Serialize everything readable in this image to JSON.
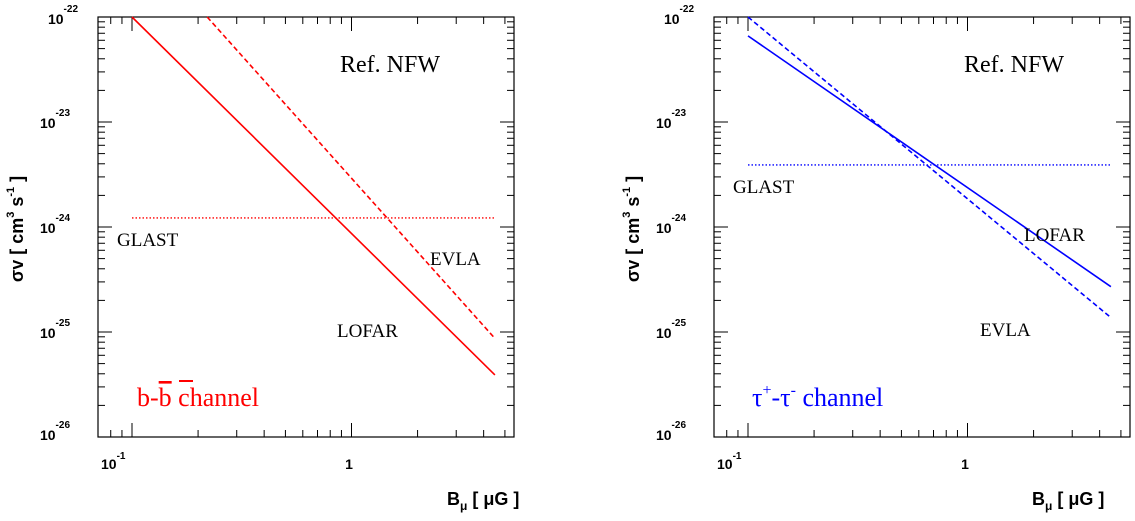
{
  "figure": {
    "panels": [
      {
        "id": "left",
        "ylabel": {
          "base": "σv [ cm",
          "sup1": "3",
          "mid": " s",
          "sup2": "-1",
          "end": " ]"
        },
        "xlabel": {
          "base": "B",
          "sub": "μ",
          "end": " [ μG ]"
        },
        "ref_label": "Ref. NFW",
        "channel_label": {
          "text1": "b-",
          "overbar": "b",
          "text2": " channel"
        },
        "channel_color": "#ff0000",
        "y_ticks": [
          {
            "base": "10",
            "exp": "-22"
          },
          {
            "base": "10",
            "exp": "-23"
          },
          {
            "base": "10",
            "exp": "-24"
          },
          {
            "base": "10",
            "exp": "-25"
          },
          {
            "base": "10",
            "exp": "-26"
          }
        ],
        "x_ticks": [
          {
            "base": "10",
            "exp": "-1"
          },
          {
            "base": "1",
            "exp": ""
          }
        ]
      },
      {
        "id": "right",
        "ylabel": {
          "base": "σv [ cm",
          "sup1": "3",
          "mid": " s",
          "sup2": "-1",
          "end": " ]"
        },
        "xlabel": {
          "base": "B",
          "sub": "μ",
          "end": " [ μG ]"
        },
        "ref_label": "Ref. NFW",
        "channel_label": {
          "tau1": "τ",
          "sup1": "+",
          "dash": "-",
          "tau2": "τ",
          "sup2": "-",
          "text2": " channel"
        },
        "channel_color": "#0000ff",
        "y_ticks": [
          {
            "base": "10",
            "exp": "-22"
          },
          {
            "base": "10",
            "exp": "-23"
          },
          {
            "base": "10",
            "exp": "-24"
          },
          {
            "base": "10",
            "exp": "-25"
          },
          {
            "base": "10",
            "exp": "-26"
          }
        ],
        "x_ticks": [
          {
            "base": "10",
            "exp": "-1"
          },
          {
            "base": "1",
            "exp": ""
          }
        ]
      }
    ]
  },
  "chart_data": [
    {
      "type": "line",
      "xscale": "log",
      "yscale": "log",
      "xlim": [
        0.07,
        5.5
      ],
      "ylim": [
        1e-26,
        1e-22
      ],
      "xlabel": "B_μ [ μG ]",
      "ylabel": "σv [ cm^3 s^-1 ]",
      "title": "",
      "annotations": [
        "Ref. NFW",
        "b-b channel"
      ],
      "color": "#ff0000",
      "series": [
        {
          "name": "LOFAR",
          "style": "solid",
          "x": [
            0.1,
            4.5
          ],
          "y": [
            1e-22,
            3.9e-26
          ]
        },
        {
          "name": "EVLA",
          "style": "dashed",
          "x": [
            0.22,
            4.5
          ],
          "y": [
            1e-22,
            8.7e-26
          ]
        },
        {
          "name": "GLAST",
          "style": "dotted",
          "x": [
            0.1,
            4.5
          ],
          "y": [
            1.22e-24,
            1.22e-24
          ]
        }
      ]
    },
    {
      "type": "line",
      "xscale": "log",
      "yscale": "log",
      "xlim": [
        0.07,
        5.5
      ],
      "ylim": [
        1e-26,
        1e-22
      ],
      "xlabel": "B_μ [ μG ]",
      "ylabel": "σv [ cm^3 s^-1 ]",
      "title": "",
      "annotations": [
        "Ref. NFW",
        "τ+-τ- channel"
      ],
      "color": "#0000ff",
      "series": [
        {
          "name": "LOFAR",
          "style": "solid",
          "x": [
            0.1,
            4.5
          ],
          "y": [
            6.6e-23,
            2.7e-25
          ]
        },
        {
          "name": "EVLA",
          "style": "dashed",
          "x": [
            0.1,
            4.5
          ],
          "y": [
            1e-22,
            1.37e-25
          ]
        },
        {
          "name": "GLAST",
          "style": "dotted",
          "x": [
            0.1,
            4.5
          ],
          "y": [
            3.9e-24,
            3.9e-24
          ]
        }
      ]
    }
  ]
}
